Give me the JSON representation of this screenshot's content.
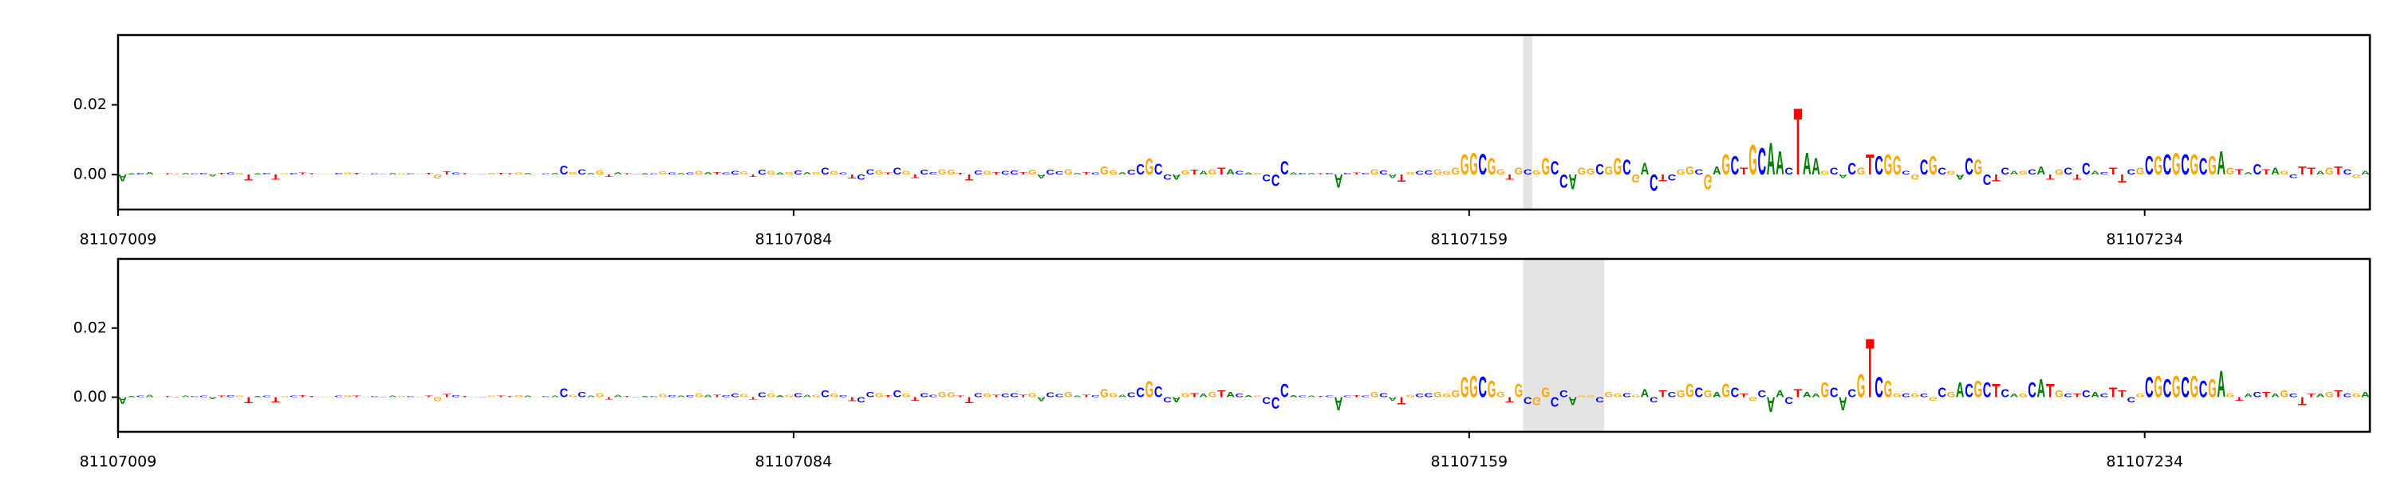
{
  "chart_data": [
    {
      "type": "logo",
      "colors": {
        "A": "#008000",
        "C": "#0000ff",
        "G": "#ffa500",
        "T": "#ff0000"
      },
      "xlim": [
        81107009,
        81107259
      ],
      "xticks": [
        81107009,
        81107084,
        81107159,
        81107234
      ],
      "ylim": [
        -0.01,
        0.04
      ],
      "yticks": [
        {
          "value": 0,
          "label": "0.00"
        },
        {
          "value": 0.02,
          "label": "0.02"
        }
      ],
      "highlight": [
        81107165,
        81107166
      ],
      "bases": [
        "A",
        "A",
        "C",
        "A",
        "G",
        "T",
        "T",
        "A",
        "C",
        "C",
        "A",
        "T",
        "C",
        "G",
        "T",
        "A",
        "C",
        "T",
        "G",
        "C",
        "T",
        "T",
        "A",
        "G",
        "C",
        "G",
        "T",
        "A",
        "C",
        "C",
        "A",
        "G",
        "C",
        "A",
        "T",
        "G",
        "T",
        "C",
        "T",
        "A",
        "C",
        "G",
        "T",
        "T",
        "G",
        "A",
        "G",
        "C",
        "A",
        "C",
        "G",
        "C",
        "A",
        "G",
        "T",
        "A",
        "T",
        "C",
        "A",
        "C",
        "G",
        "C",
        "A",
        "C",
        "G",
        "A",
        "T",
        "C",
        "C",
        "G",
        "T",
        "C",
        "G",
        "A",
        "G",
        "C",
        "A",
        "G",
        "C",
        "G",
        "C",
        "T",
        "C",
        "C",
        "G",
        "T",
        "C",
        "G",
        "T",
        "C",
        "C",
        "G",
        "G",
        "T",
        "T",
        "C",
        "G",
        "T",
        "C",
        "C",
        "T",
        "G",
        "A",
        "C",
        "C",
        "G",
        "A",
        "T",
        "C",
        "G",
        "G",
        "A",
        "C",
        "C",
        "G",
        "C",
        "C",
        "A",
        "G",
        "T",
        "A",
        "G",
        "T",
        "A",
        "C",
        "A",
        "G",
        "C",
        "C",
        "C",
        "A",
        "C",
        "A",
        "T",
        "C",
        "A",
        "C",
        "T",
        "C",
        "G",
        "C",
        "A",
        "T",
        "G",
        "C",
        "C",
        "G",
        "G",
        "G",
        "G",
        "G",
        "C",
        "G",
        "G",
        "T",
        "G",
        "C",
        "G",
        "G",
        "C",
        "C",
        "A",
        "G",
        "G",
        "C",
        "G",
        "G",
        "C",
        "G",
        "A",
        "C",
        "T",
        "C",
        "G",
        "G",
        "C",
        "G",
        "A",
        "G",
        "C",
        "T",
        "G",
        "C",
        "A",
        "A",
        "C",
        "T",
        "A",
        "A",
        "G",
        "C",
        "A",
        "C",
        "G",
        "T",
        "C",
        "G",
        "G",
        "C",
        "G",
        "C",
        "G",
        "C",
        "G",
        "A",
        "C",
        "G",
        "C",
        "T",
        "C",
        "A",
        "G",
        "C",
        "A",
        "T",
        "G",
        "C",
        "T",
        "C",
        "A",
        "C",
        "T",
        "T",
        "C",
        "G",
        "C",
        "G",
        "C",
        "G",
        "C",
        "G",
        "C",
        "G",
        "A",
        "G",
        "T",
        "A",
        "C",
        "T",
        "A",
        "G",
        "C",
        "T",
        "T",
        "A",
        "G",
        "T",
        "C",
        "G",
        "A"
      ],
      "values": [
        -0.002,
        0.0003,
        0.0005,
        0.0008,
        0.0002,
        0.0003,
        0.0002,
        0.0004,
        0.0003,
        0.0005,
        -0.0006,
        0.0005,
        0.0006,
        0.0004,
        -0.0018,
        0.0003,
        0.0005,
        -0.0015,
        0.0003,
        0.0004,
        0.0006,
        0.0003,
        0.0002,
        0.0002,
        0.0005,
        0.0006,
        0.0005,
        0.0002,
        0.0003,
        0.0002,
        0.0005,
        0.0003,
        0.0003,
        0.0002,
        0.0004,
        -0.0012,
        0.0009,
        0.0006,
        0.0003,
        0.0002,
        0.0002,
        0.0005,
        0.0004,
        0.0003,
        0.0006,
        0.0005,
        0.0002,
        0.0003,
        0.0004,
        0.0026,
        0.0008,
        0.0015,
        0.0005,
        0.0012,
        -0.0008,
        0.0007,
        0.0003,
        0.0002,
        0.0003,
        0.0003,
        0.0009,
        0.0006,
        0.0004,
        0.0006,
        0.001,
        0.0008,
        0.0007,
        0.0006,
        0.0011,
        0.0009,
        -0.0007,
        0.0014,
        0.001,
        0.0006,
        0.0007,
        0.0012,
        0.0007,
        0.0008,
        0.002,
        0.001,
        0.0006,
        -0.0012,
        -0.0016,
        0.0015,
        0.0012,
        0.0006,
        0.002,
        0.001,
        -0.001,
        0.0013,
        0.0008,
        0.0015,
        0.0014,
        0.0005,
        -0.0018,
        0.0012,
        0.001,
        0.0007,
        0.001,
        0.0012,
        0.0008,
        0.0013,
        -0.0012,
        0.0014,
        0.0009,
        0.0016,
        0.0005,
        0.0008,
        0.0006,
        0.0024,
        0.0012,
        0.0008,
        0.0014,
        0.003,
        0.0048,
        0.0032,
        -0.0015,
        -0.0015,
        0.0012,
        0.0013,
        0.001,
        0.0015,
        0.002,
        0.0015,
        0.001,
        0.0006,
        0.0005,
        -0.002,
        -0.0035,
        0.004,
        0.0006,
        0.0005,
        0.0004,
        0.0003,
        0.0005,
        -0.004,
        0.0004,
        0.0006,
        0.0005,
        0.0015,
        0.0012,
        -0.001,
        -0.0022,
        0.0008,
        0.001,
        0.0012,
        0.0015,
        0.001,
        0.002,
        0.006,
        0.0065,
        0.0062,
        0.005,
        0.0015,
        -0.0015,
        0.002,
        0.0015,
        0.0012,
        0.005,
        0.004,
        -0.004,
        -0.0045,
        0.002,
        0.0018,
        0.003,
        0.0025,
        0.005,
        0.0045,
        -0.0025,
        0.0035,
        -0.005,
        -0.002,
        -0.0018,
        0.0015,
        0.0025,
        0.0015,
        -0.0045,
        0.0025,
        0.006,
        0.0055,
        0.002,
        0.009,
        0.008,
        0.0095,
        0.007,
        0.002,
        0.02,
        0.0065,
        0.005,
        0.001,
        0.002,
        -0.001,
        0.0035,
        0.002,
        0.006,
        0.0055,
        0.006,
        0.0055,
        0.001,
        -0.0015,
        0.0045,
        0.0055,
        0.002,
        0.001,
        -0.0015,
        0.005,
        0.0045,
        -0.003,
        -0.002,
        0.002,
        0.001,
        0.001,
        0.0015,
        0.0025,
        -0.0015,
        0.0015,
        0.002,
        -0.0015,
        0.0035,
        0.001,
        0.0008,
        0.002,
        -0.0025,
        0.0015,
        0.002,
        0.0055,
        0.0055,
        0.006,
        0.0065,
        0.006,
        0.006,
        0.005,
        0.0055,
        0.007,
        0.002,
        0.0015,
        0.0008,
        0.003,
        0.0015,
        0.002,
        0.001,
        -0.001,
        0.0025,
        0.002,
        0.001,
        0.002,
        0.0025,
        0.0015,
        -0.001,
        0.001
      ]
    },
    {
      "type": "logo",
      "colors": {
        "A": "#008000",
        "C": "#0000ff",
        "G": "#ffa500",
        "T": "#ff0000"
      },
      "xlim": [
        81107009,
        81107259
      ],
      "xticks": [
        81107009,
        81107084,
        81107159,
        81107234
      ],
      "ylim": [
        -0.01,
        0.04
      ],
      "yticks": [
        {
          "value": 0,
          "label": "0.00"
        },
        {
          "value": 0.02,
          "label": "0.02"
        }
      ],
      "highlight": [
        81107165,
        81107174
      ],
      "bases": [
        "A",
        "A",
        "C",
        "A",
        "G",
        "T",
        "T",
        "A",
        "C",
        "C",
        "A",
        "T",
        "C",
        "G",
        "T",
        "A",
        "C",
        "T",
        "G",
        "C",
        "T",
        "T",
        "A",
        "G",
        "C",
        "G",
        "T",
        "A",
        "C",
        "C",
        "A",
        "G",
        "C",
        "A",
        "T",
        "G",
        "T",
        "C",
        "T",
        "A",
        "C",
        "G",
        "T",
        "T",
        "G",
        "A",
        "G",
        "C",
        "A",
        "C",
        "G",
        "C",
        "A",
        "G",
        "T",
        "A",
        "T",
        "C",
        "A",
        "C",
        "G",
        "C",
        "A",
        "C",
        "G",
        "A",
        "T",
        "C",
        "C",
        "G",
        "T",
        "C",
        "G",
        "A",
        "G",
        "C",
        "A",
        "G",
        "C",
        "G",
        "C",
        "T",
        "C",
        "C",
        "G",
        "T",
        "C",
        "G",
        "T",
        "C",
        "C",
        "G",
        "G",
        "T",
        "T",
        "C",
        "G",
        "T",
        "C",
        "C",
        "T",
        "G",
        "A",
        "C",
        "C",
        "G",
        "A",
        "T",
        "C",
        "G",
        "G",
        "A",
        "C",
        "C",
        "G",
        "C",
        "C",
        "A",
        "G",
        "T",
        "A",
        "G",
        "T",
        "A",
        "C",
        "A",
        "G",
        "C",
        "C",
        "C",
        "A",
        "C",
        "A",
        "T",
        "C",
        "A",
        "C",
        "T",
        "C",
        "G",
        "C",
        "A",
        "T",
        "G",
        "C",
        "C",
        "G",
        "G",
        "G",
        "G",
        "G",
        "C",
        "G",
        "G",
        "T",
        "G",
        "C",
        "G",
        "G",
        "C",
        "C",
        "A",
        "G",
        "G",
        "C",
        "G",
        "G",
        "C",
        "G",
        "A",
        "C",
        "T",
        "C",
        "G",
        "G",
        "C",
        "G",
        "A",
        "G",
        "C",
        "T",
        "G",
        "C",
        "A",
        "A",
        "C",
        "T",
        "A",
        "A",
        "G",
        "C",
        "A",
        "C",
        "G",
        "T",
        "C",
        "G",
        "G",
        "C",
        "G",
        "C",
        "G",
        "C",
        "G",
        "A",
        "C",
        "G",
        "C",
        "T",
        "C",
        "A",
        "G",
        "C",
        "A",
        "T",
        "G",
        "C",
        "T",
        "C",
        "A",
        "C",
        "T",
        "T",
        "C",
        "G",
        "C",
        "G",
        "C",
        "G",
        "C",
        "G",
        "C",
        "G",
        "A",
        "G",
        "T",
        "A",
        "C",
        "T",
        "A",
        "G",
        "C",
        "T",
        "T",
        "A",
        "G",
        "T",
        "C",
        "G",
        "A"
      ],
      "values": [
        -0.002,
        0.0003,
        0.0005,
        0.0008,
        0.0002,
        0.0003,
        0.0002,
        0.0004,
        0.0003,
        0.0005,
        -0.0006,
        0.0005,
        0.0006,
        0.0004,
        -0.0018,
        0.0003,
        0.0005,
        -0.0015,
        0.0003,
        0.0004,
        0.0006,
        0.0003,
        0.0002,
        0.0002,
        0.0005,
        0.0006,
        0.0005,
        0.0002,
        0.0003,
        0.0002,
        0.0005,
        0.0003,
        0.0003,
        0.0002,
        0.0004,
        -0.0012,
        0.0009,
        0.0006,
        0.0003,
        0.0002,
        0.0002,
        0.0005,
        0.0004,
        0.0003,
        0.0006,
        0.0005,
        0.0002,
        0.0003,
        0.0004,
        0.0026,
        0.0008,
        0.0015,
        0.0005,
        0.0012,
        -0.0008,
        0.0007,
        0.0003,
        0.0002,
        0.0003,
        0.0003,
        0.0009,
        0.0006,
        0.0004,
        0.0006,
        0.001,
        0.0008,
        0.0007,
        0.0006,
        0.0011,
        0.0009,
        -0.0007,
        0.0014,
        0.001,
        0.0006,
        0.0007,
        0.0012,
        0.0007,
        0.0008,
        0.002,
        0.001,
        0.0006,
        -0.0012,
        -0.0016,
        0.0015,
        0.0012,
        0.0006,
        0.002,
        0.001,
        -0.001,
        0.0013,
        0.0008,
        0.0015,
        0.0014,
        0.0005,
        -0.0018,
        0.0012,
        0.001,
        0.0007,
        0.001,
        0.0012,
        0.0008,
        0.0013,
        -0.0012,
        0.0014,
        0.0009,
        0.0016,
        0.0005,
        0.0008,
        0.0006,
        0.0024,
        0.0012,
        0.0008,
        0.0014,
        0.003,
        0.0048,
        0.0032,
        -0.0015,
        -0.0015,
        0.0012,
        0.0013,
        0.001,
        0.0015,
        0.002,
        0.0015,
        0.001,
        0.0006,
        0.0005,
        -0.002,
        -0.0035,
        0.004,
        0.0006,
        0.0005,
        0.0004,
        0.0003,
        0.0005,
        -0.004,
        0.0004,
        0.0006,
        0.0005,
        0.0015,
        0.0012,
        -0.001,
        -0.0022,
        0.0008,
        0.001,
        0.0012,
        0.0015,
        0.001,
        0.002,
        0.006,
        0.0065,
        0.0062,
        0.005,
        0.0015,
        -0.0015,
        0.004,
        -0.002,
        -0.0025,
        0.003,
        -0.003,
        0.002,
        -0.0025,
        0.0005,
        0.0005,
        -0.0015,
        0.0015,
        0.001,
        0.0012,
        0.0008,
        0.0025,
        -0.0015,
        0.002,
        0.0015,
        0.002,
        0.004,
        0.003,
        0.002,
        0.0015,
        0.004,
        0.003,
        0.001,
        -0.001,
        0.002,
        -0.0045,
        0.002,
        -0.002,
        0.0025,
        0.0015,
        0.001,
        0.0045,
        0.003,
        -0.004,
        0.0025,
        0.007,
        0.0178,
        0.006,
        0.005,
        0.001,
        0.001,
        0.001,
        0.001,
        -0.001,
        0.003,
        0.0015,
        0.0045,
        0.004,
        0.005,
        0.0045,
        0.004,
        0.0025,
        0.001,
        0.001,
        0.0045,
        0.0055,
        0.004,
        0.002,
        0.001,
        0.001,
        0.002,
        0.0015,
        0.001,
        0.003,
        0.002,
        -0.0015,
        0.001,
        0.006,
        0.0065,
        0.0055,
        0.0065,
        0.006,
        0.0065,
        0.005,
        0.0055,
        0.008,
        0.001,
        -0.001,
        0.001,
        0.0015,
        0.0015,
        0.001,
        0.002,
        0.001,
        -0.0025,
        0.001,
        0.001,
        0.0015,
        0.002,
        0.001,
        0.001,
        0.0015
      ]
    }
  ]
}
